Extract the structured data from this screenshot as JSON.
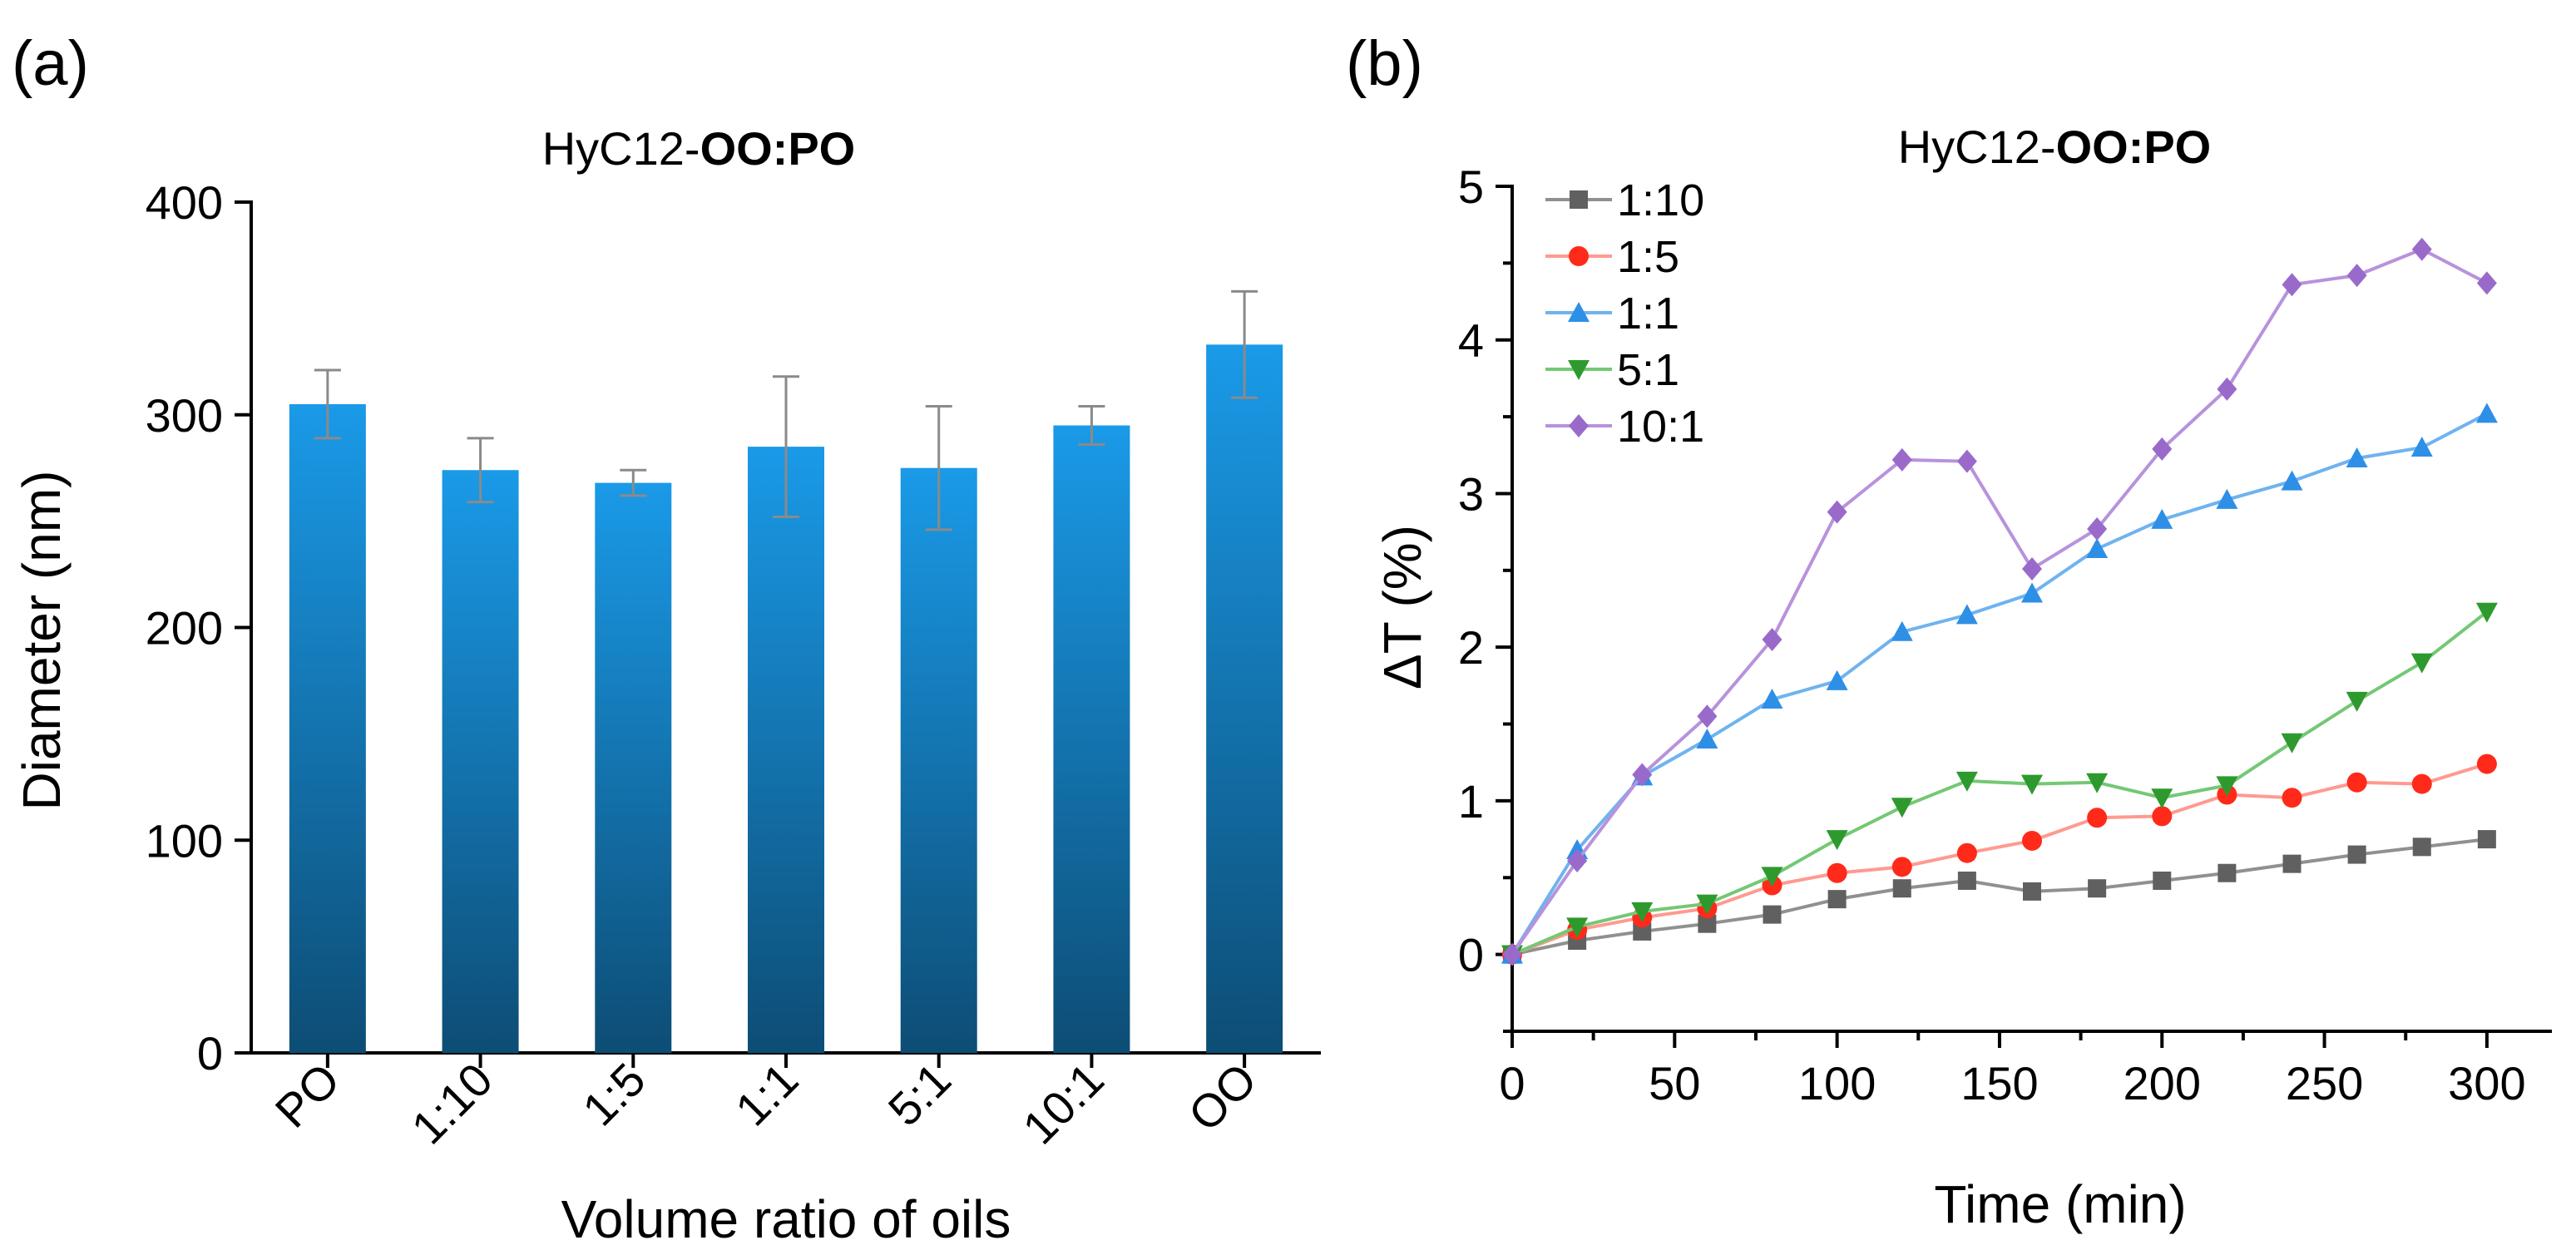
{
  "chart_data": [
    {
      "panel_label": "(a)",
      "type": "bar",
      "title_prefix": "HyC12-",
      "title_bold": "OO:PO",
      "xlabel": "Volume ratio of oils",
      "ylabel": "Diameter (nm)",
      "ylim": [
        0,
        400
      ],
      "yticks": [
        "0",
        "100",
        "200",
        "300",
        "400"
      ],
      "categories": [
        "PO",
        "1:10",
        "1:5",
        "1:1",
        "5:1",
        "10:1",
        "OO"
      ],
      "values": [
        305,
        274,
        268,
        285,
        275,
        295,
        333
      ],
      "errors": [
        16,
        15,
        6,
        33,
        29,
        9,
        25
      ],
      "bar_color_top": "#1a9ae8",
      "bar_color_bottom": "#0d4d75"
    },
    {
      "panel_label": "(b)",
      "type": "line",
      "title_prefix": "HyC12-",
      "title_bold": "OO:PO",
      "xlabel": "Time (min)",
      "ylabel": "ΔT (%)",
      "xlim": [
        0,
        320
      ],
      "ylim": [
        -0.5,
        5
      ],
      "xticks": [
        "0",
        "50",
        "100",
        "150",
        "200",
        "250",
        "300"
      ],
      "yticks": [
        "0",
        "1",
        "2",
        "3",
        "4",
        "5"
      ],
      "legend_position": "top-left",
      "x": [
        0,
        20,
        40,
        60,
        80,
        100,
        120,
        140,
        160,
        180,
        200,
        220,
        240,
        260,
        280,
        300
      ],
      "series": [
        {
          "name": "1:10",
          "marker": "square",
          "color": "#606060",
          "line_color": "#909090",
          "values": [
            0,
            0.09,
            0.15,
            0.2,
            0.26,
            0.36,
            0.43,
            0.48,
            0.41,
            0.43,
            0.48,
            0.53,
            0.59,
            0.65,
            0.7,
            0.75
          ]
        },
        {
          "name": "1:5",
          "marker": "circle",
          "color": "#ff2a1a",
          "line_color": "#ff9a90",
          "values": [
            0,
            0.16,
            0.24,
            0.3,
            0.45,
            0.53,
            0.57,
            0.66,
            0.74,
            0.89,
            0.9,
            1.04,
            1.02,
            1.12,
            1.11,
            1.24
          ]
        },
        {
          "name": "1:1",
          "marker": "triangle-up",
          "color": "#2e8fe6",
          "line_color": "#6fb3ef",
          "values": [
            0,
            0.68,
            1.16,
            1.4,
            1.66,
            1.78,
            2.1,
            2.21,
            2.35,
            2.64,
            2.83,
            2.96,
            3.08,
            3.23,
            3.3,
            3.52
          ]
        },
        {
          "name": "5:1",
          "marker": "triangle-down",
          "color": "#2e9a2e",
          "line_color": "#74c874",
          "values": [
            0,
            0.18,
            0.28,
            0.33,
            0.51,
            0.75,
            0.96,
            1.13,
            1.11,
            1.12,
            1.02,
            1.1,
            1.38,
            1.65,
            1.9,
            2.23
          ]
        },
        {
          "name": "10:1",
          "marker": "diamond",
          "color": "#9a6acb",
          "line_color": "#b892dc",
          "values": [
            0,
            0.61,
            1.17,
            1.55,
            2.05,
            2.88,
            3.22,
            3.21,
            2.51,
            2.77,
            3.29,
            3.68,
            4.36,
            4.42,
            4.59,
            4.37
          ]
        }
      ]
    }
  ]
}
